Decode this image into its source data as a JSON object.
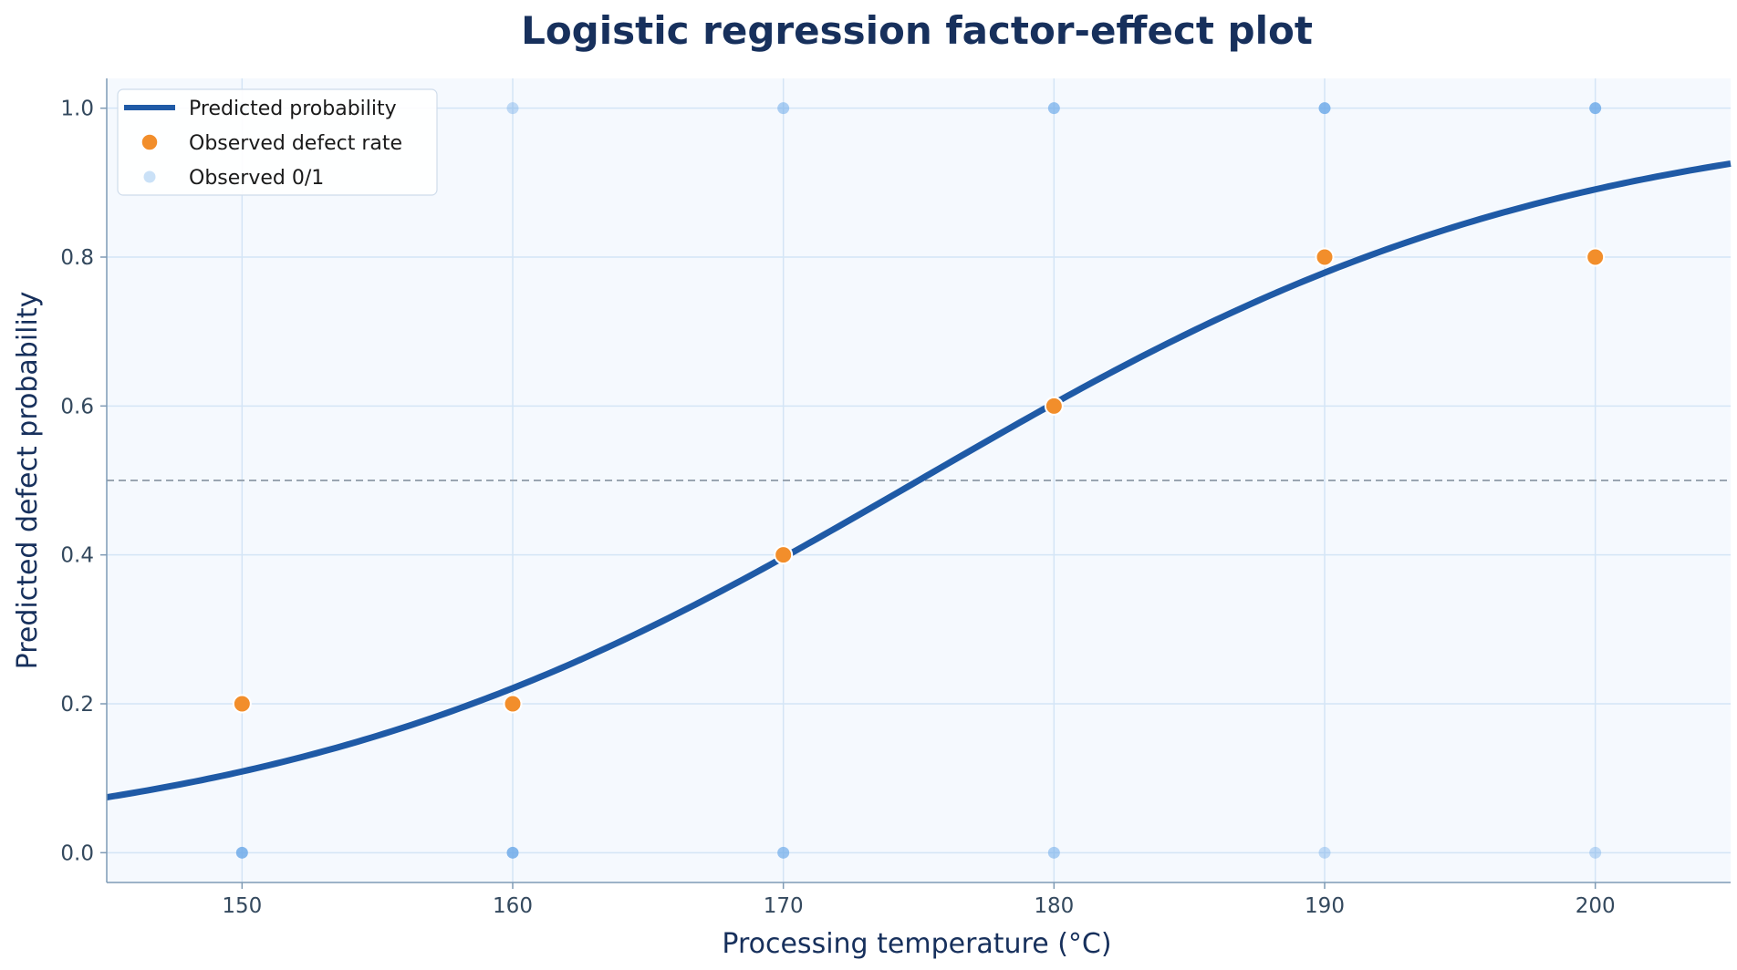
{
  "chart_data": {
    "type": "line",
    "title": "Logistic regression factor-effect plot",
    "xlabel": "Processing temperature (°C)",
    "ylabel": "Predicted defect probability",
    "xlim": [
      145,
      205
    ],
    "ylim": [
      -0.04,
      1.04
    ],
    "xticks": [
      150,
      160,
      170,
      180,
      190,
      200
    ],
    "yticks": [
      0.0,
      0.2,
      0.4,
      0.6,
      0.8,
      1.0
    ],
    "xtick_labels": [
      "150",
      "160",
      "170",
      "180",
      "190",
      "200"
    ],
    "ytick_labels": [
      "0.0",
      "0.2",
      "0.4",
      "0.6",
      "0.8",
      "1.0"
    ],
    "grid": true,
    "reference_line": {
      "y": 0.5,
      "style": "dashed"
    },
    "legend_position": "top-left",
    "series": [
      {
        "name": "Predicted probability",
        "kind": "line",
        "model": {
          "intercept": -14.7,
          "slope": 0.084
        },
        "color": "#1f5aa6"
      },
      {
        "name": "Observed defect rate",
        "kind": "scatter",
        "x": [
          150,
          160,
          170,
          180,
          190,
          200
        ],
        "y": [
          0.2,
          0.2,
          0.4,
          0.6,
          0.8,
          0.8
        ],
        "color": "#f28e2b"
      },
      {
        "name": "Observed 0/1",
        "kind": "scatter",
        "x": [
          150,
          150,
          160,
          160,
          170,
          170,
          180,
          180,
          190,
          190,
          200,
          200
        ],
        "y": [
          0,
          1,
          0,
          1,
          0,
          1,
          0,
          1,
          0,
          1,
          0,
          1
        ],
        "count": [
          4,
          1,
          4,
          1,
          3,
          2,
          2,
          3,
          1,
          4,
          1,
          4
        ],
        "color": "#6aa8e8"
      }
    ]
  }
}
